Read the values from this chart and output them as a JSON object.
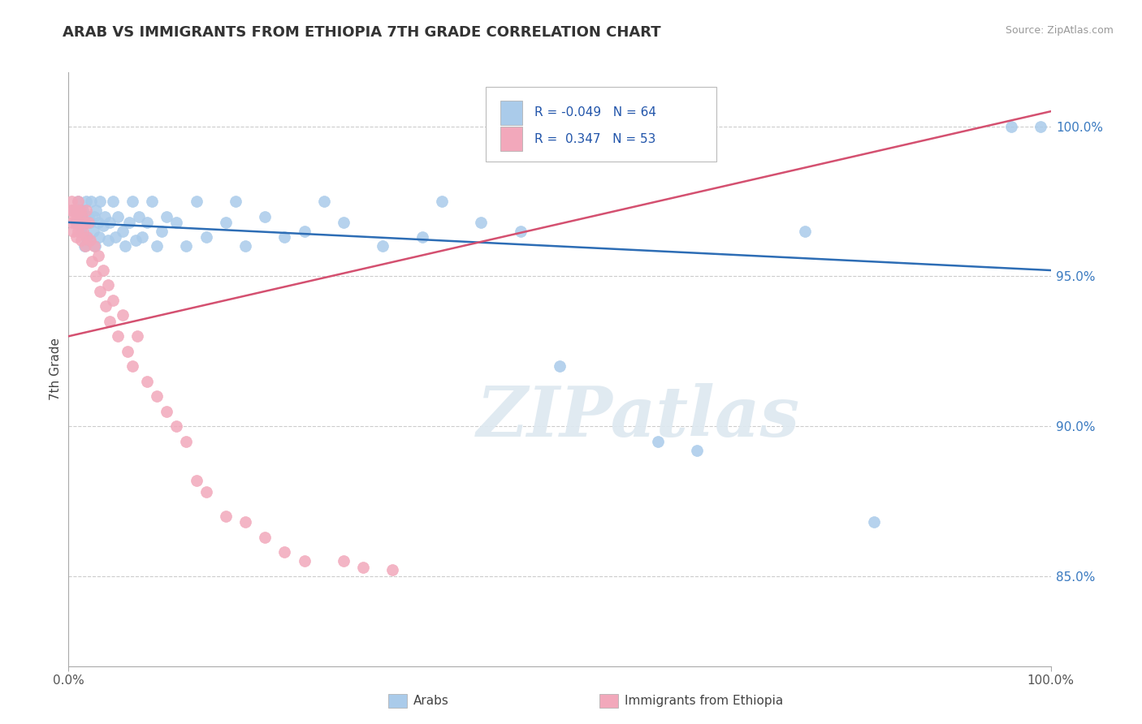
{
  "title": "ARAB VS IMMIGRANTS FROM ETHIOPIA 7TH GRADE CORRELATION CHART",
  "source": "Source: ZipAtlas.com",
  "ylabel": "7th Grade",
  "y_ticks": [
    0.85,
    0.9,
    0.95,
    1.0
  ],
  "y_tick_labels": [
    "85.0%",
    "90.0%",
    "95.0%",
    "100.0%"
  ],
  "x_range": [
    0.0,
    1.0
  ],
  "y_range": [
    0.82,
    1.018
  ],
  "blue_label": "Arabs",
  "pink_label": "Immigrants from Ethiopia",
  "blue_R": -0.049,
  "blue_N": 64,
  "pink_R": 0.347,
  "pink_N": 53,
  "blue_color": "#aacbea",
  "pink_color": "#f2a8bb",
  "blue_line_color": "#2d6db5",
  "pink_line_color": "#d45070",
  "watermark": "ZIPatlas",
  "blue_line_start_y": 0.968,
  "blue_line_end_y": 0.952,
  "pink_line_start_y": 0.93,
  "pink_line_end_y": 1.005,
  "blue_dots_x": [
    0.005,
    0.008,
    0.01,
    0.012,
    0.013,
    0.015,
    0.015,
    0.016,
    0.018,
    0.018,
    0.02,
    0.021,
    0.022,
    0.023,
    0.025,
    0.026,
    0.027,
    0.028,
    0.03,
    0.031,
    0.032,
    0.035,
    0.037,
    0.04,
    0.042,
    0.045,
    0.048,
    0.05,
    0.055,
    0.058,
    0.062,
    0.065,
    0.068,
    0.072,
    0.075,
    0.08,
    0.085,
    0.09,
    0.095,
    0.1,
    0.11,
    0.12,
    0.13,
    0.14,
    0.16,
    0.17,
    0.18,
    0.2,
    0.22,
    0.24,
    0.26,
    0.28,
    0.32,
    0.36,
    0.38,
    0.42,
    0.46,
    0.5,
    0.6,
    0.64,
    0.75,
    0.82,
    0.96,
    0.99
  ],
  "blue_dots_y": [
    0.972,
    0.968,
    0.975,
    0.97,
    0.965,
    0.972,
    0.967,
    0.96,
    0.975,
    0.963,
    0.97,
    0.962,
    0.968,
    0.975,
    0.965,
    0.97,
    0.96,
    0.972,
    0.968,
    0.963,
    0.975,
    0.967,
    0.97,
    0.962,
    0.968,
    0.975,
    0.963,
    0.97,
    0.965,
    0.96,
    0.968,
    0.975,
    0.962,
    0.97,
    0.963,
    0.968,
    0.975,
    0.96,
    0.965,
    0.97,
    0.968,
    0.96,
    0.975,
    0.963,
    0.968,
    0.975,
    0.96,
    0.97,
    0.963,
    0.965,
    0.975,
    0.968,
    0.96,
    0.963,
    0.975,
    0.968,
    0.965,
    0.92,
    0.895,
    0.892,
    0.965,
    0.868,
    1.0,
    1.0
  ],
  "pink_dots_x": [
    0.002,
    0.003,
    0.004,
    0.005,
    0.005,
    0.006,
    0.007,
    0.008,
    0.008,
    0.009,
    0.01,
    0.01,
    0.011,
    0.012,
    0.013,
    0.014,
    0.015,
    0.016,
    0.017,
    0.018,
    0.019,
    0.02,
    0.022,
    0.024,
    0.026,
    0.028,
    0.03,
    0.032,
    0.035,
    0.038,
    0.04,
    0.042,
    0.045,
    0.05,
    0.055,
    0.06,
    0.065,
    0.07,
    0.08,
    0.09,
    0.1,
    0.11,
    0.12,
    0.13,
    0.14,
    0.16,
    0.18,
    0.2,
    0.22,
    0.24,
    0.28,
    0.3,
    0.33
  ],
  "pink_dots_y": [
    0.972,
    0.975,
    0.968,
    0.972,
    0.965,
    0.97,
    0.968,
    0.972,
    0.963,
    0.97,
    0.975,
    0.965,
    0.968,
    0.972,
    0.962,
    0.97,
    0.965,
    0.968,
    0.96,
    0.972,
    0.963,
    0.968,
    0.962,
    0.955,
    0.96,
    0.95,
    0.957,
    0.945,
    0.952,
    0.94,
    0.947,
    0.935,
    0.942,
    0.93,
    0.937,
    0.925,
    0.92,
    0.93,
    0.915,
    0.91,
    0.905,
    0.9,
    0.895,
    0.882,
    0.878,
    0.87,
    0.868,
    0.863,
    0.858,
    0.855,
    0.855,
    0.853,
    0.852
  ]
}
